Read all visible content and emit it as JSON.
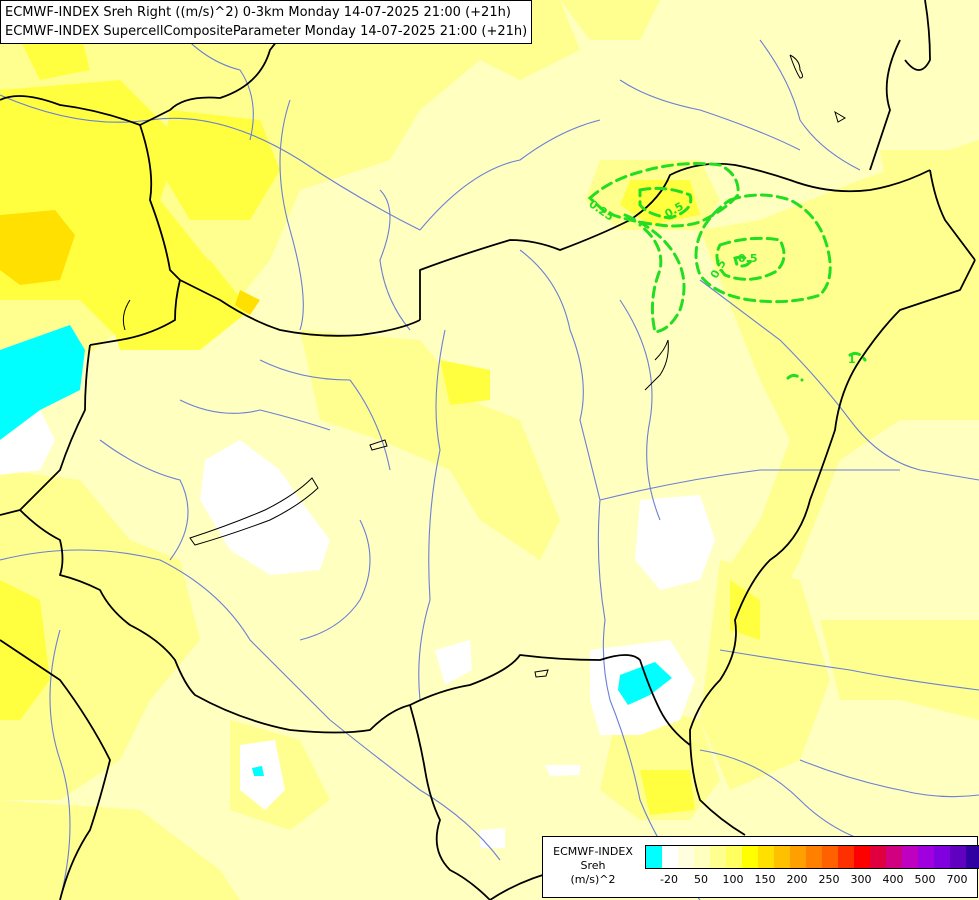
{
  "title": {
    "line1": "ECMWF-INDEX Sreh Right ((m/s)^2) 0-3km Monday 14-07-2025 21:00 (+21h)",
    "line2": "ECMWF-INDEX SupercellCompositeParameter Monday 14-07-2025 21:00 (+21h)"
  },
  "legend": {
    "line1": "ECMWF-INDEX",
    "line2": "Sreh",
    "line3": "(m/s)^2",
    "colors": [
      "#00ffff",
      "#ffffff",
      "#ffffe0",
      "#ffffc0",
      "#ffff90",
      "#ffff60",
      "#ffff00",
      "#ffe000",
      "#ffc000",
      "#ffa000",
      "#ff8000",
      "#ff6000",
      "#ff3000",
      "#ff0000",
      "#e00040",
      "#d00080",
      "#c000c0",
      "#a000e0",
      "#8000e0",
      "#6000c0",
      "#3000a0",
      "#000080"
    ],
    "ticks": [
      "-20",
      "50",
      "100",
      "150",
      "200",
      "250",
      "300",
      "400",
      "500",
      "700"
    ]
  },
  "contour_labels": [
    "0.25",
    "0.5",
    "0.5",
    "0.5",
    "1"
  ],
  "colors": {
    "background": "#ffffc0",
    "yellow_mid": "#ffff90",
    "yellow_strong": "#ffff40",
    "yellow_max": "#ffe000",
    "white_area": "#ffffff",
    "cyan_area": "#00ffff",
    "rivers": "#6b7fd6",
    "borders": "#000000",
    "contour": "#22dd22"
  }
}
